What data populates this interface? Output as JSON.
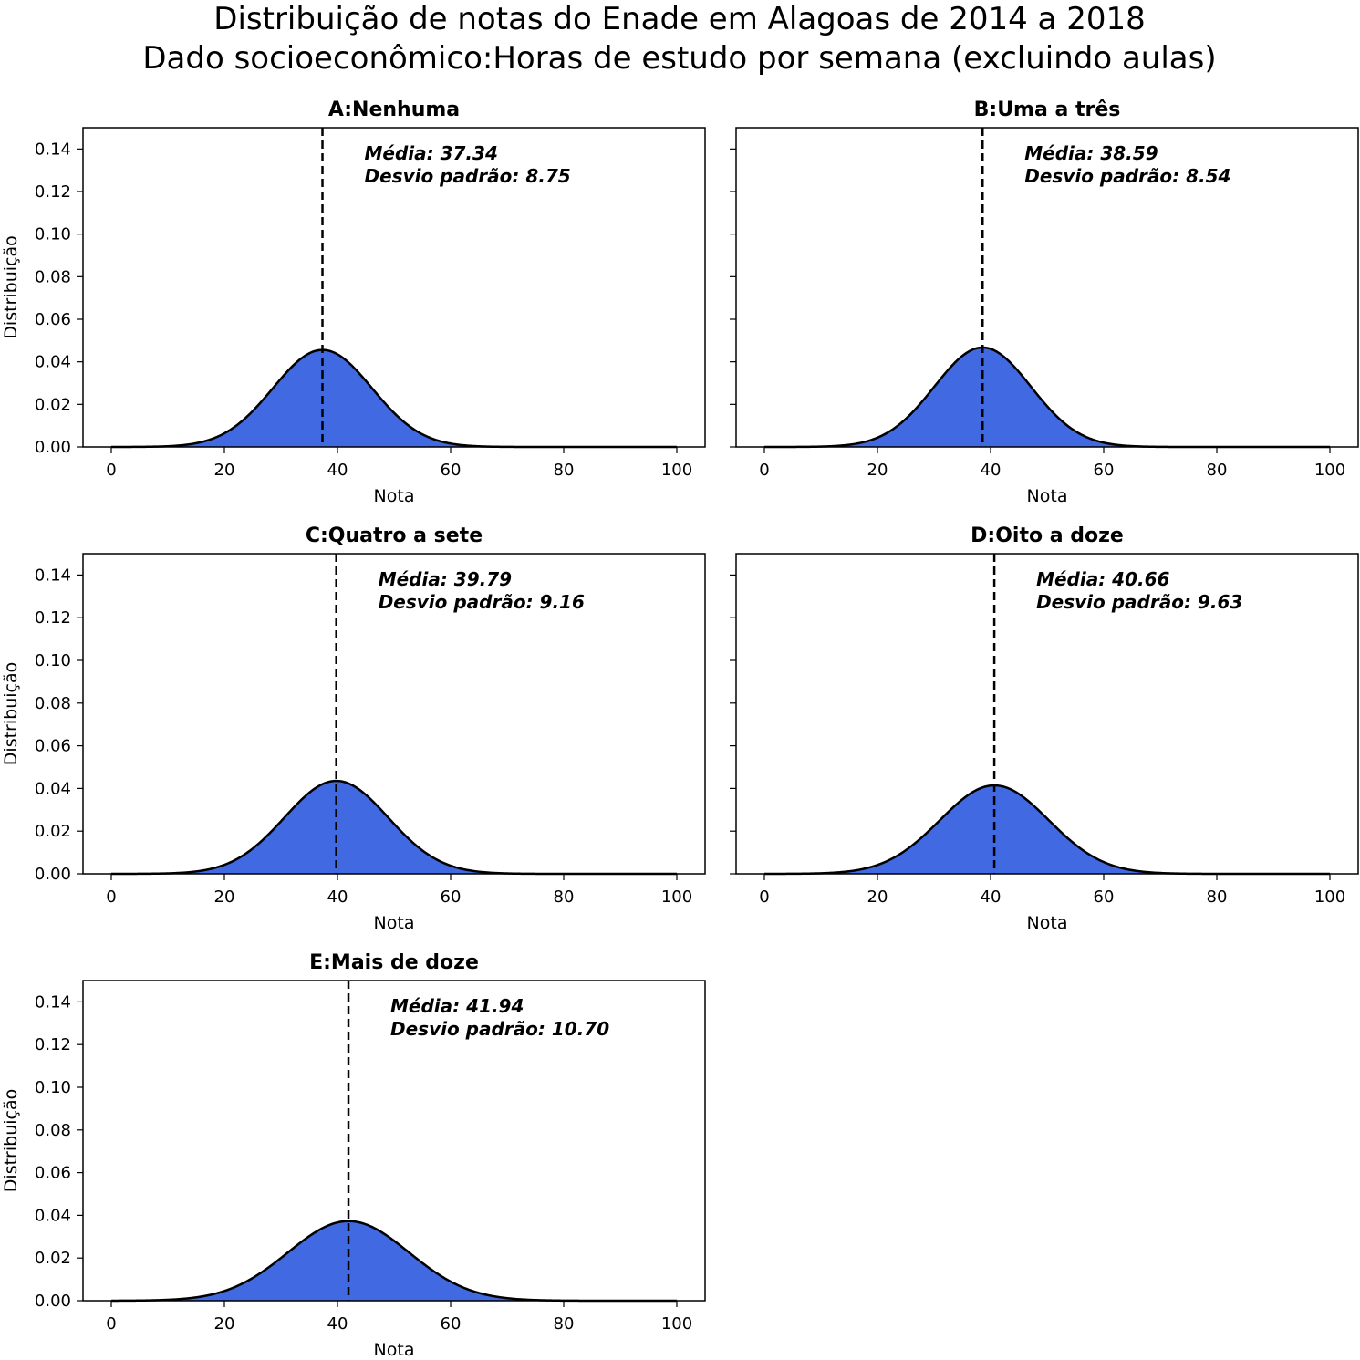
{
  "figure": {
    "title_line1": "Distribuição de notas do Enade em Alagoas de 2014 a 2018",
    "title_line2": "Dado socioeconômico:Horas de estudo por semana (excluindo aulas)"
  },
  "chart_data": [
    {
      "type": "area",
      "title": "A:Nenhuma",
      "xlabel": "Nota",
      "ylabel": "Distribuição",
      "mean": 37.34,
      "std": 8.75,
      "mean_label": "Média: 37.34",
      "std_label": "Desvio padrão: 8.75",
      "xlim": [
        -5,
        105
      ],
      "ylim": [
        0,
        0.15
      ],
      "xticks": [
        0,
        20,
        40,
        60,
        80,
        100
      ],
      "xtick_labels": [
        "0",
        "20",
        "40",
        "60",
        "80",
        "100"
      ],
      "yticks": [
        0,
        0.02,
        0.04,
        0.06,
        0.08,
        0.1,
        0.12,
        0.14
      ],
      "ytick_labels": [
        "0.00",
        "0.02",
        "0.04",
        "0.06",
        "0.08",
        "0.10",
        "0.12",
        "0.14"
      ]
    },
    {
      "type": "area",
      "title": "B:Uma a três",
      "xlabel": "Nota",
      "ylabel": "",
      "mean": 38.59,
      "std": 8.54,
      "mean_label": "Média: 38.59",
      "std_label": "Desvio padrão: 8.54",
      "xlim": [
        -5,
        105
      ],
      "ylim": [
        0,
        0.15
      ],
      "xticks": [
        0,
        20,
        40,
        60,
        80,
        100
      ],
      "xtick_labels": [
        "0",
        "20",
        "40",
        "60",
        "80",
        "100"
      ],
      "yticks": [
        0,
        0.02,
        0.04,
        0.06,
        0.08,
        0.1,
        0.12,
        0.14
      ],
      "ytick_labels": []
    },
    {
      "type": "area",
      "title": "C:Quatro a sete",
      "xlabel": "Nota",
      "ylabel": "Distribuição",
      "mean": 39.79,
      "std": 9.16,
      "mean_label": "Média: 39.79",
      "std_label": "Desvio padrão: 9.16",
      "xlim": [
        -5,
        105
      ],
      "ylim": [
        0,
        0.15
      ],
      "xticks": [
        0,
        20,
        40,
        60,
        80,
        100
      ],
      "xtick_labels": [
        "0",
        "20",
        "40",
        "60",
        "80",
        "100"
      ],
      "yticks": [
        0,
        0.02,
        0.04,
        0.06,
        0.08,
        0.1,
        0.12,
        0.14
      ],
      "ytick_labels": [
        "0.00",
        "0.02",
        "0.04",
        "0.06",
        "0.08",
        "0.10",
        "0.12",
        "0.14"
      ]
    },
    {
      "type": "area",
      "title": "D:Oito a doze",
      "xlabel": "Nota",
      "ylabel": "",
      "mean": 40.66,
      "std": 9.63,
      "mean_label": "Média: 40.66",
      "std_label": "Desvio padrão: 9.63",
      "xlim": [
        -5,
        105
      ],
      "ylim": [
        0,
        0.15
      ],
      "xticks": [
        0,
        20,
        40,
        60,
        80,
        100
      ],
      "xtick_labels": [
        "0",
        "20",
        "40",
        "60",
        "80",
        "100"
      ],
      "yticks": [
        0,
        0.02,
        0.04,
        0.06,
        0.08,
        0.1,
        0.12,
        0.14
      ],
      "ytick_labels": []
    },
    {
      "type": "area",
      "title": "E:Mais de doze",
      "xlabel": "Nota",
      "ylabel": "Distribuição",
      "mean": 41.94,
      "std": 10.7,
      "mean_label": "Média: 41.94",
      "std_label": "Desvio padrão: 10.70",
      "xlim": [
        -5,
        105
      ],
      "ylim": [
        0,
        0.15
      ],
      "xticks": [
        0,
        20,
        40,
        60,
        80,
        100
      ],
      "xtick_labels": [
        "0",
        "20",
        "40",
        "60",
        "80",
        "100"
      ],
      "yticks": [
        0,
        0.02,
        0.04,
        0.06,
        0.08,
        0.1,
        0.12,
        0.14
      ],
      "ytick_labels": [
        "0.00",
        "0.02",
        "0.04",
        "0.06",
        "0.08",
        "0.10",
        "0.12",
        "0.14"
      ]
    }
  ],
  "colors": {
    "fill": "#4169e1",
    "curve": "#000000",
    "mean_line": "#000000",
    "axes": "#000000"
  }
}
